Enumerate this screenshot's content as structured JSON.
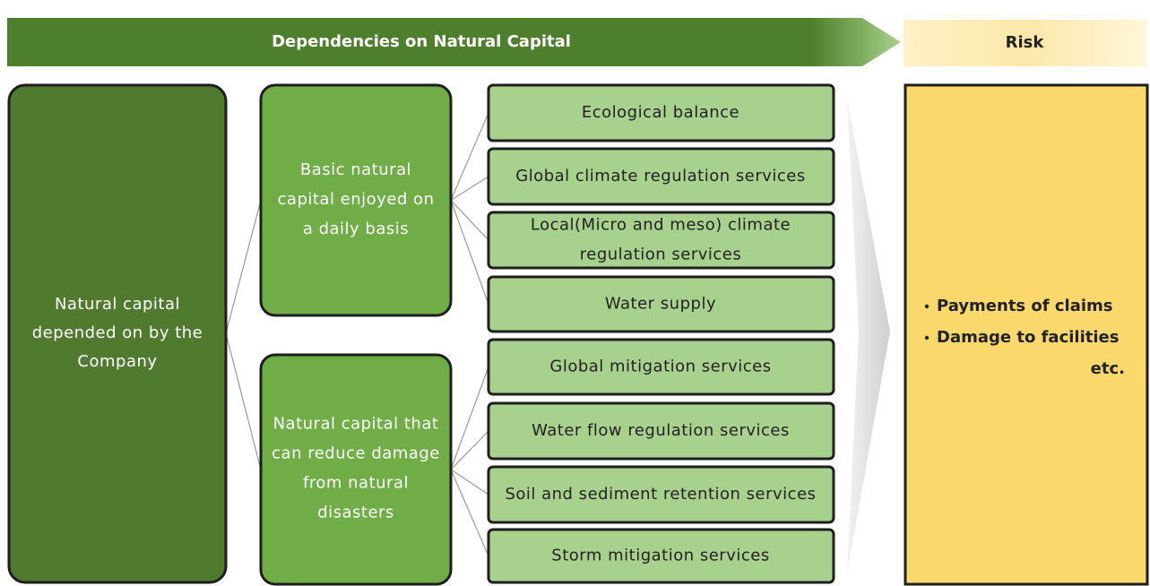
{
  "header": {
    "title": "Dependencies on Natural Capital",
    "risk_title": "Risk"
  },
  "root": {
    "lines": [
      "Natural capital",
      "depended on by the",
      "Company"
    ]
  },
  "groups": [
    {
      "lines": [
        "Basic natural",
        "capital enjoyed on",
        "a daily basis"
      ],
      "services": [
        {
          "lines": [
            "Ecological balance"
          ]
        },
        {
          "lines": [
            "Global climate regulation services"
          ]
        },
        {
          "lines": [
            "Local(Micro and meso) climate",
            "regulation services"
          ]
        },
        {
          "lines": [
            "Water supply"
          ]
        }
      ]
    },
    {
      "lines": [
        "Natural capital that",
        "can reduce damage",
        "from natural",
        "disasters"
      ],
      "services": [
        {
          "lines": [
            "Global mitigation services"
          ]
        },
        {
          "lines": [
            "Water flow regulation services"
          ]
        },
        {
          "lines": [
            "Soil and sediment retention services"
          ]
        },
        {
          "lines": [
            "Storm mitigation services"
          ]
        }
      ]
    }
  ],
  "risk": {
    "items": [
      "Payments of claims",
      "Damage to facilities"
    ],
    "note": "etc."
  }
}
